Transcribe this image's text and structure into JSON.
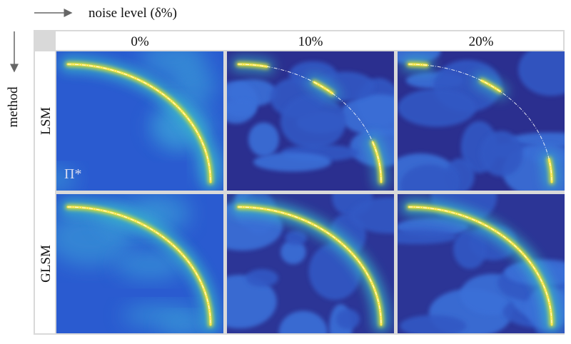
{
  "figure": {
    "x_axis_label": "noise level (δ%)",
    "y_axis_label": "method",
    "columns": [
      "0%",
      "10%",
      "20%"
    ],
    "rows": [
      "LSM",
      "GLSM"
    ],
    "annotation": "Π*"
  }
}
